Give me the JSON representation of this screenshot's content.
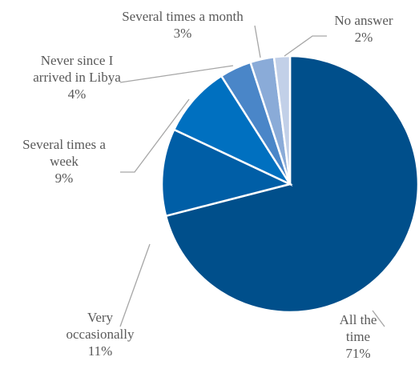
{
  "chart_data": {
    "type": "pie",
    "title": "",
    "start_angle_deg": 0,
    "direction": "clockwise",
    "slices": [
      {
        "name": "All the time",
        "value": 71,
        "value_label": "71%",
        "label_lines": [
          "All the",
          "time"
        ],
        "color": "#004f8b"
      },
      {
        "name": "Very occasionally",
        "value": 11,
        "value_label": "11%",
        "label_lines": [
          "Very",
          "occasionally"
        ],
        "color": "#005ea6"
      },
      {
        "name": "Several times a week",
        "value": 9,
        "value_label": "9%",
        "label_lines": [
          "Several times a",
          "week"
        ],
        "color": "#0070c0"
      },
      {
        "name": "Never since I arrived in Libya",
        "value": 4,
        "value_label": "4%",
        "label_lines": [
          "Never since I",
          "arrived in Libya"
        ],
        "color": "#4a86c8"
      },
      {
        "name": "Several times a month",
        "value": 3,
        "value_label": "3%",
        "label_lines": [
          "Several times a month"
        ],
        "color": "#8aabd8"
      },
      {
        "name": "No answer",
        "value": 2,
        "value_label": "2%",
        "label_lines": [
          "No answer"
        ],
        "color": "#c2d0e8"
      }
    ]
  }
}
